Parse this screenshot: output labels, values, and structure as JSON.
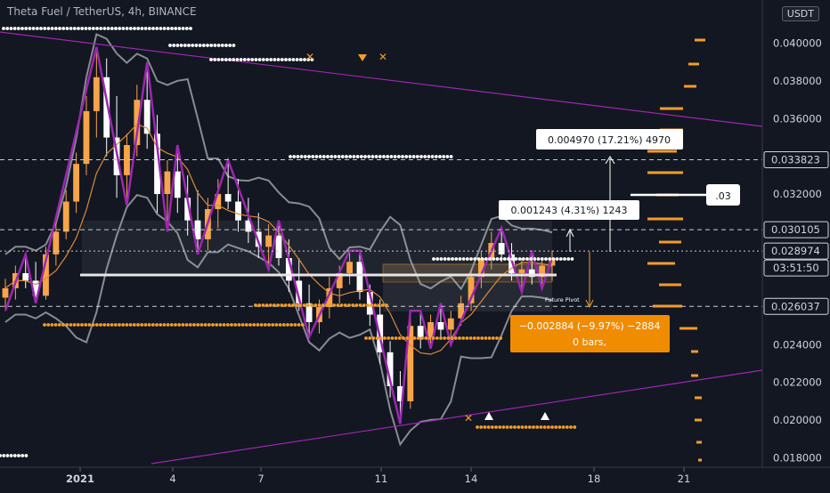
{
  "header": {
    "title": "Theta Fuel / TetherUS, 4h, BINANCE",
    "currency": "USDT"
  },
  "colors": {
    "background": "#131722",
    "up": "#f7a548",
    "down": "#ffffff",
    "zigzag": "#9c27b0",
    "band": "#b0b3b8",
    "ma": "#d98a3a",
    "dots_orange": "#f39c2b",
    "dots_white": "#ffffff",
    "neg_box": "#f08c00"
  },
  "chart_data": {
    "type": "candlestick",
    "title": "Theta Fuel / TetherUS, 4h, BINANCE",
    "ylim": [
      0.0175,
      0.0423
    ],
    "yticks": [
      0.018,
      0.02,
      0.022,
      0.024,
      0.026,
      0.028,
      0.03,
      0.032,
      0.034,
      0.036,
      0.038,
      0.04
    ],
    "ytick_labels": [
      "0.018000",
      "0.020000",
      "0.022000",
      "0.024000",
      "0.026000",
      "0.028000",
      "0.030000",
      "0.032000",
      "0.034000",
      "0.036000",
      "0.038000",
      "0.040000"
    ],
    "xtick_labels": [
      "2021",
      "4",
      "7",
      "11",
      "14",
      "18",
      "21"
    ],
    "price_labels": [
      {
        "label": "0.033823",
        "value": 0.033823,
        "style": "dashed"
      },
      {
        "label": "0.030105",
        "value": 0.030105,
        "style": "dashed"
      },
      {
        "label": "0.028974",
        "value": 0.028974,
        "style": "dotted"
      },
      {
        "label": "0.026037",
        "value": 0.026037,
        "style": "dashed"
      }
    ],
    "countdown": "03:51:50",
    "projection_tag": ".03",
    "measures": [
      {
        "text": "0.004970 (17.21%) 4970"
      },
      {
        "text": "0.001243 (4.31%) 1243"
      },
      {
        "text": "−0.002884 (−9.97%) −2884",
        "sub": "0 bars,"
      }
    ],
    "annotation": "Future Pivot",
    "candles": [
      [
        0.0265,
        0.0275,
        0.0258,
        0.027
      ],
      [
        0.027,
        0.0282,
        0.0264,
        0.0278
      ],
      [
        0.0278,
        0.0288,
        0.027,
        0.0274
      ],
      [
        0.0274,
        0.0284,
        0.0262,
        0.0266
      ],
      [
        0.0266,
        0.0292,
        0.0264,
        0.0288
      ],
      [
        0.0288,
        0.0306,
        0.0282,
        0.03
      ],
      [
        0.03,
        0.0322,
        0.0296,
        0.0316
      ],
      [
        0.0316,
        0.0342,
        0.031,
        0.0336
      ],
      [
        0.0336,
        0.0372,
        0.033,
        0.0364
      ],
      [
        0.0364,
        0.0398,
        0.035,
        0.0382
      ],
      [
        0.0382,
        0.0392,
        0.034,
        0.035
      ],
      [
        0.035,
        0.0372,
        0.0318,
        0.033
      ],
      [
        0.033,
        0.0352,
        0.0314,
        0.0346
      ],
      [
        0.0346,
        0.0378,
        0.034,
        0.037
      ],
      [
        0.037,
        0.039,
        0.0344,
        0.0352
      ],
      [
        0.0352,
        0.0362,
        0.031,
        0.032
      ],
      [
        0.032,
        0.0338,
        0.03,
        0.0332
      ],
      [
        0.0332,
        0.0346,
        0.031,
        0.0318
      ],
      [
        0.0318,
        0.033,
        0.0298,
        0.0306
      ],
      [
        0.0306,
        0.0322,
        0.0288,
        0.0296
      ],
      [
        0.0296,
        0.0318,
        0.029,
        0.0312
      ],
      [
        0.0312,
        0.0328,
        0.0302,
        0.032
      ],
      [
        0.032,
        0.0338,
        0.0312,
        0.0316
      ],
      [
        0.0316,
        0.0328,
        0.03,
        0.0306
      ],
      [
        0.0306,
        0.0318,
        0.0294,
        0.03
      ],
      [
        0.03,
        0.031,
        0.0286,
        0.0292
      ],
      [
        0.0292,
        0.0304,
        0.028,
        0.0298
      ],
      [
        0.0298,
        0.0306,
        0.0282,
        0.0286
      ],
      [
        0.0286,
        0.0296,
        0.0268,
        0.0274
      ],
      [
        0.0274,
        0.0286,
        0.0258,
        0.0262
      ],
      [
        0.0262,
        0.0272,
        0.0244,
        0.0252
      ],
      [
        0.0252,
        0.0264,
        0.0246,
        0.026
      ],
      [
        0.026,
        0.0276,
        0.0254,
        0.027
      ],
      [
        0.027,
        0.0282,
        0.0262,
        0.0278
      ],
      [
        0.0278,
        0.029,
        0.0272,
        0.0284
      ],
      [
        0.0284,
        0.029,
        0.0264,
        0.0268
      ],
      [
        0.0268,
        0.0272,
        0.025,
        0.0256
      ],
      [
        0.0256,
        0.0264,
        0.023,
        0.0236
      ],
      [
        0.0236,
        0.0242,
        0.0212,
        0.0218
      ],
      [
        0.0218,
        0.0226,
        0.0198,
        0.021
      ],
      [
        0.021,
        0.0258,
        0.0206,
        0.025
      ],
      [
        0.025,
        0.0258,
        0.0238,
        0.0244
      ],
      [
        0.0244,
        0.0256,
        0.0238,
        0.0252
      ],
      [
        0.0252,
        0.0262,
        0.0244,
        0.0248
      ],
      [
        0.0248,
        0.0258,
        0.024,
        0.0254
      ],
      [
        0.0254,
        0.0266,
        0.025,
        0.0262
      ],
      [
        0.0262,
        0.028,
        0.0258,
        0.0276
      ],
      [
        0.0276,
        0.029,
        0.027,
        0.0286
      ],
      [
        0.0286,
        0.03,
        0.028,
        0.0294
      ],
      [
        0.0294,
        0.0302,
        0.0284,
        0.0288
      ],
      [
        0.0288,
        0.0294,
        0.0274,
        0.0278
      ],
      [
        0.0278,
        0.0286,
        0.0268,
        0.028
      ],
      [
        0.028,
        0.029,
        0.0272,
        0.0276
      ],
      [
        0.0276,
        0.0286,
        0.027,
        0.0282
      ],
      [
        0.0282,
        0.029,
        0.0274,
        0.0286
      ]
    ]
  }
}
